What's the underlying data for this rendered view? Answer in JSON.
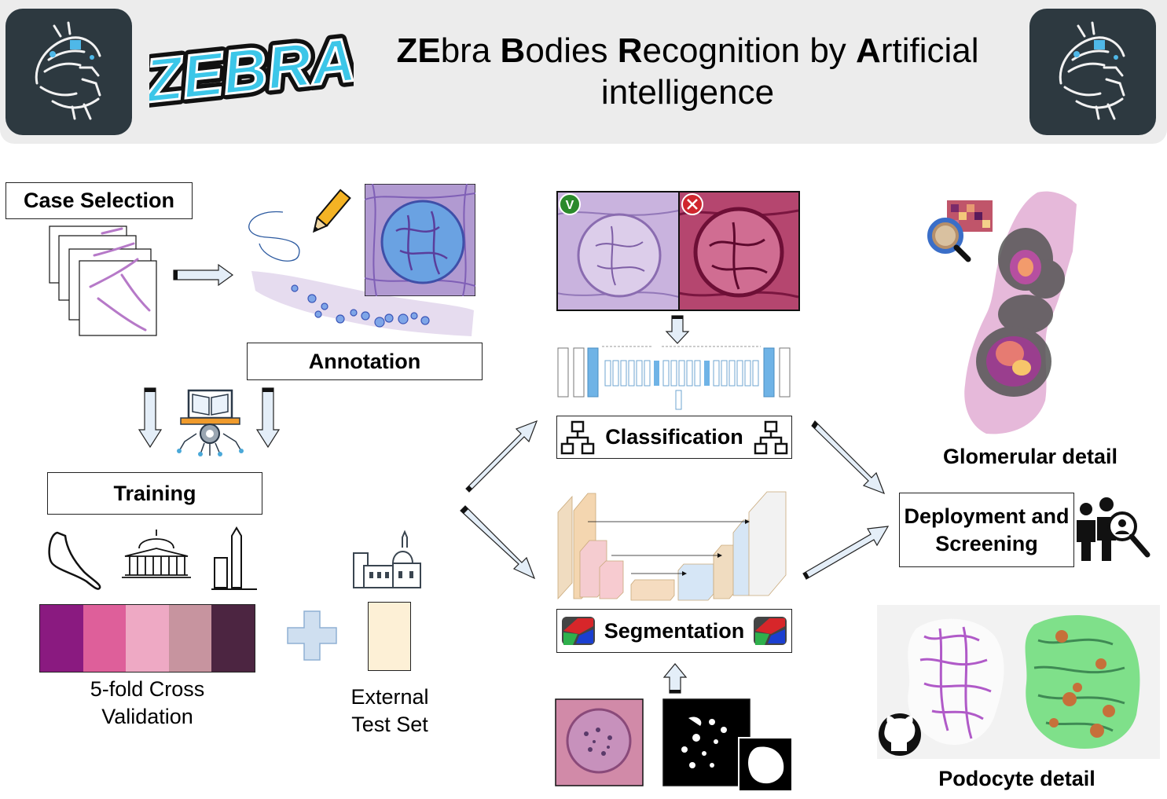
{
  "header": {
    "logo_text": "ZEBRA",
    "title_parts": [
      {
        "text": "ZE",
        "bold": true
      },
      {
        "text": "bra ",
        "bold": false
      },
      {
        "text": "B",
        "bold": true
      },
      {
        "text": "odies ",
        "bold": false
      },
      {
        "text": "R",
        "bold": true
      },
      {
        "text": "ecognition by ",
        "bold": false
      },
      {
        "text": "A",
        "bold": true
      },
      {
        "text": "rtificial intelligence",
        "bold": false
      }
    ]
  },
  "labels": {
    "case_selection": "Case Selection",
    "annotation": "Annotation",
    "training": "Training",
    "cross_validation": "5-fold Cross Validation",
    "external_test_set": "External Test Set",
    "classification": "Classification",
    "segmentation": "Segmentation",
    "glomerular_detail": "Glomerular detail",
    "deployment": "Deployment and Screening",
    "podocyte_detail": "Podocyte detail"
  },
  "colors": {
    "folds": [
      "#8a1a80",
      "#de5f9a",
      "#eea9c4",
      "#c7949f",
      "#4c2541"
    ],
    "external": "#fdf0d6",
    "plus": "#cfdff0",
    "arrow_fill": "#e4eef8",
    "check": "#2b8a2b",
    "cross": "#d0262e"
  },
  "icons": [
    "zebra-circuit-icon",
    "pencil-icon",
    "book-gear-icon",
    "landmark-icons",
    "network-icon",
    "segmentation-icon",
    "magnifier-icon",
    "people-search-icon",
    "github-icon"
  ]
}
